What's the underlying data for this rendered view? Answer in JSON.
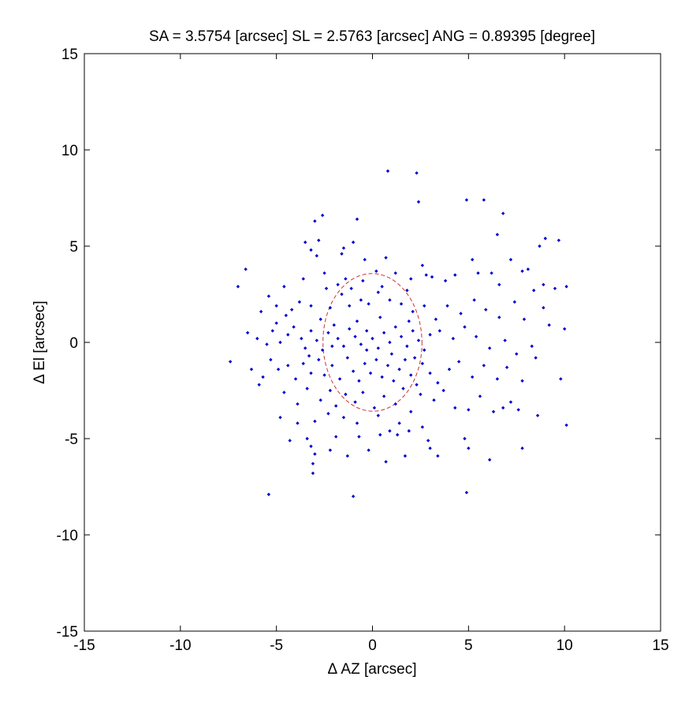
{
  "chart_data": {
    "type": "scatter",
    "title": "SA = 3.5754 [arcsec]  SL = 2.5763 [arcsec]  ANG = 0.89395 [degree]",
    "xlabel": "Δ AZ [arcsec]",
    "ylabel": "Δ El [arcsec]",
    "xlim": [
      -15,
      15
    ],
    "ylim": [
      -15,
      15
    ],
    "xticks": [
      -15,
      -10,
      -5,
      0,
      5,
      10,
      15
    ],
    "yticks": [
      -15,
      -10,
      -5,
      0,
      5,
      10,
      15
    ],
    "grid": false,
    "colors": {
      "points": "#0000cc",
      "ellipse": "#cc3333",
      "axes": "#000000"
    },
    "ellipse": {
      "center": [
        0,
        0
      ],
      "semi_axis_el": 3.5754,
      "semi_axis_az": 2.5763,
      "angle_deg": 0.89395,
      "style": "dashed"
    },
    "series": [
      {
        "points": [
          [
            0.8,
            8.9
          ],
          [
            2.3,
            8.8
          ],
          [
            2.4,
            7.3
          ],
          [
            -2.6,
            6.6
          ],
          [
            -3.0,
            6.3
          ],
          [
            -0.8,
            6.4
          ],
          [
            4.9,
            7.4
          ],
          [
            5.8,
            7.4
          ],
          [
            6.8,
            6.7
          ],
          [
            6.5,
            5.6
          ],
          [
            9.0,
            5.4
          ],
          [
            9.7,
            5.3
          ],
          [
            8.7,
            5.0
          ],
          [
            -6.6,
            3.8
          ],
          [
            -7.0,
            2.9
          ],
          [
            -3.5,
            5.2
          ],
          [
            -3.2,
            4.8
          ],
          [
            -2.9,
            4.5
          ],
          [
            -2.8,
            5.3
          ],
          [
            -1.5,
            4.9
          ],
          [
            -1.0,
            5.2
          ],
          [
            -1.4,
            3.3
          ],
          [
            -1.8,
            3.0
          ],
          [
            -1.6,
            4.6
          ],
          [
            -0.4,
            4.3
          ],
          [
            0.2,
            3.7
          ],
          [
            0.7,
            4.4
          ],
          [
            1.2,
            3.6
          ],
          [
            2.0,
            3.3
          ],
          [
            2.6,
            4.0
          ],
          [
            2.8,
            3.5
          ],
          [
            3.1,
            3.4
          ],
          [
            3.8,
            3.2
          ],
          [
            4.3,
            3.5
          ],
          [
            5.2,
            4.3
          ],
          [
            5.5,
            3.6
          ],
          [
            6.2,
            3.6
          ],
          [
            6.6,
            3.0
          ],
          [
            7.2,
            4.3
          ],
          [
            7.8,
            3.7
          ],
          [
            8.1,
            3.8
          ],
          [
            8.4,
            2.7
          ],
          [
            8.9,
            3.0
          ],
          [
            10.1,
            2.9
          ],
          [
            9.5,
            2.8
          ],
          [
            -5.4,
            2.4
          ],
          [
            -5.8,
            1.6
          ],
          [
            -5.0,
            1.9
          ],
          [
            -4.5,
            1.4
          ],
          [
            -3.8,
            2.1
          ],
          [
            -3.2,
            1.9
          ],
          [
            -2.7,
            1.2
          ],
          [
            -2.2,
            1.8
          ],
          [
            -1.6,
            2.5
          ],
          [
            -1.2,
            1.9
          ],
          [
            -0.6,
            2.2
          ],
          [
            -0.2,
            2.0
          ],
          [
            0.3,
            2.6
          ],
          [
            0.9,
            2.2
          ],
          [
            1.5,
            2.0
          ],
          [
            2.1,
            1.6
          ],
          [
            2.7,
            1.9
          ],
          [
            3.3,
            1.2
          ],
          [
            3.9,
            1.9
          ],
          [
            4.6,
            1.5
          ],
          [
            5.3,
            2.2
          ],
          [
            5.9,
            1.7
          ],
          [
            6.6,
            1.3
          ],
          [
            7.4,
            2.1
          ],
          [
            7.9,
            1.2
          ],
          [
            -6.5,
            0.5
          ],
          [
            -6.0,
            0.2
          ],
          [
            -5.5,
            -0.1
          ],
          [
            -5.2,
            0.6
          ],
          [
            -4.8,
            0.0
          ],
          [
            -4.4,
            0.4
          ],
          [
            -4.1,
            0.8
          ],
          [
            -3.7,
            0.2
          ],
          [
            -3.5,
            -0.3
          ],
          [
            -3.2,
            0.6
          ],
          [
            -2.9,
            0.1
          ],
          [
            -2.6,
            -0.4
          ],
          [
            -2.3,
            0.5
          ],
          [
            -2.0,
            0.9
          ],
          [
            -1.8,
            0.2
          ],
          [
            -1.5,
            -0.2
          ],
          [
            -1.2,
            0.7
          ],
          [
            -0.9,
            0.3
          ],
          [
            -0.6,
            -0.1
          ],
          [
            -0.3,
            0.6
          ],
          [
            0.0,
            0.2
          ],
          [
            0.3,
            -0.3
          ],
          [
            0.6,
            0.5
          ],
          [
            0.9,
            0.0
          ],
          [
            1.2,
            0.8
          ],
          [
            1.5,
            0.3
          ],
          [
            1.8,
            -0.2
          ],
          [
            2.1,
            0.6
          ],
          [
            2.4,
            0.1
          ],
          [
            2.7,
            -0.4
          ],
          [
            3.0,
            0.4
          ],
          [
            3.5,
            0.6
          ],
          [
            4.2,
            0.2
          ],
          [
            4.8,
            0.8
          ],
          [
            5.4,
            0.3
          ],
          [
            6.1,
            -0.3
          ],
          [
            6.9,
            0.1
          ],
          [
            7.5,
            -0.6
          ],
          [
            8.3,
            -0.2
          ],
          [
            9.2,
            0.9
          ],
          [
            10.0,
            0.7
          ],
          [
            -7.4,
            -1.0
          ],
          [
            -6.3,
            -1.4
          ],
          [
            -5.7,
            -1.8
          ],
          [
            -5.3,
            -0.9
          ],
          [
            -4.9,
            -1.4
          ],
          [
            -4.4,
            -1.2
          ],
          [
            -4.0,
            -1.9
          ],
          [
            -3.6,
            -1.1
          ],
          [
            -3.2,
            -1.6
          ],
          [
            -2.8,
            -0.9
          ],
          [
            -2.5,
            -1.7
          ],
          [
            -2.1,
            -1.2
          ],
          [
            -1.7,
            -1.9
          ],
          [
            -1.3,
            -0.8
          ],
          [
            -1.0,
            -1.5
          ],
          [
            -0.7,
            -2.0
          ],
          [
            -0.4,
            -1.1
          ],
          [
            -0.1,
            -1.6
          ],
          [
            0.2,
            -0.9
          ],
          [
            0.5,
            -1.8
          ],
          [
            0.8,
            -1.2
          ],
          [
            1.1,
            -2.0
          ],
          [
            1.4,
            -1.4
          ],
          [
            1.7,
            -0.9
          ],
          [
            2.0,
            -1.7
          ],
          [
            2.3,
            -2.2
          ],
          [
            2.6,
            -1.1
          ],
          [
            3.0,
            -1.6
          ],
          [
            3.4,
            -2.1
          ],
          [
            4.0,
            -1.4
          ],
          [
            4.5,
            -1.0
          ],
          [
            5.2,
            -1.8
          ],
          [
            5.8,
            -1.2
          ],
          [
            6.5,
            -1.9
          ],
          [
            7.0,
            -1.3
          ],
          [
            7.8,
            -2.0
          ],
          [
            8.5,
            -0.8
          ],
          [
            -5.9,
            -2.2
          ],
          [
            -4.6,
            -2.6
          ],
          [
            -3.9,
            -3.2
          ],
          [
            -3.4,
            -2.4
          ],
          [
            -2.7,
            -3.0
          ],
          [
            -2.2,
            -2.5
          ],
          [
            -1.9,
            -3.3
          ],
          [
            -1.4,
            -2.7
          ],
          [
            -0.9,
            -3.1
          ],
          [
            -0.5,
            -2.6
          ],
          [
            0.1,
            -3.4
          ],
          [
            0.6,
            -2.8
          ],
          [
            1.2,
            -3.2
          ],
          [
            1.6,
            -2.4
          ],
          [
            2.0,
            -3.6
          ],
          [
            2.5,
            -2.7
          ],
          [
            3.2,
            -3.0
          ],
          [
            3.7,
            -2.5
          ],
          [
            4.3,
            -3.4
          ],
          [
            5.0,
            -3.5
          ],
          [
            5.6,
            -2.8
          ],
          [
            6.3,
            -3.6
          ],
          [
            6.8,
            -3.4
          ],
          [
            7.2,
            -3.1
          ],
          [
            7.6,
            -3.5
          ],
          [
            8.6,
            -3.8
          ],
          [
            -4.8,
            -3.9
          ],
          [
            -3.9,
            -4.2
          ],
          [
            -3.0,
            -4.1
          ],
          [
            -2.3,
            -3.7
          ],
          [
            -1.5,
            -3.9
          ],
          [
            -0.8,
            -4.2
          ],
          [
            0.3,
            -3.8
          ],
          [
            0.9,
            -4.6
          ],
          [
            1.4,
            -4.2
          ],
          [
            1.9,
            -4.6
          ],
          [
            2.6,
            -4.4
          ],
          [
            -4.3,
            -5.1
          ],
          [
            -3.4,
            -5.0
          ],
          [
            -3.2,
            -5.4
          ],
          [
            -2.2,
            -5.6
          ],
          [
            -1.9,
            -4.9
          ],
          [
            -0.7,
            -4.9
          ],
          [
            0.4,
            -4.8
          ],
          [
            1.3,
            -4.8
          ],
          [
            2.9,
            -5.1
          ],
          [
            3.0,
            -5.5
          ],
          [
            4.8,
            -5.0
          ],
          [
            5.0,
            -5.5
          ],
          [
            6.1,
            -6.1
          ],
          [
            7.8,
            -5.5
          ],
          [
            -3.0,
            -5.8
          ],
          [
            -3.1,
            -6.3
          ],
          [
            -1.3,
            -5.9
          ],
          [
            -0.2,
            -5.6
          ],
          [
            0.7,
            -6.2
          ],
          [
            1.7,
            -5.9
          ],
          [
            3.4,
            -5.9
          ],
          [
            4.9,
            -7.8
          ],
          [
            -3.1,
            -6.8
          ],
          [
            -5.4,
            -7.9
          ],
          [
            -1.0,
            -8.0
          ],
          [
            10.1,
            -4.3
          ],
          [
            9.8,
            -1.9
          ],
          [
            8.9,
            1.8
          ],
          [
            -5.0,
            1.0
          ],
          [
            -4.2,
            1.7
          ],
          [
            -3.3,
            -0.7
          ],
          [
            -2.4,
            2.8
          ],
          [
            -0.3,
            -0.4
          ],
          [
            0.4,
            1.3
          ],
          [
            1.0,
            -0.6
          ],
          [
            1.9,
            1.1
          ],
          [
            -1.1,
            2.8
          ],
          [
            -0.5,
            3.2
          ],
          [
            0.5,
            2.9
          ],
          [
            1.8,
            2.7
          ],
          [
            -2.1,
            -0.2
          ],
          [
            2.2,
            -0.8
          ],
          [
            -0.8,
            1.1
          ],
          [
            -4.6,
            2.9
          ],
          [
            -3.6,
            3.3
          ],
          [
            -2.5,
            3.6
          ]
        ]
      }
    ]
  }
}
